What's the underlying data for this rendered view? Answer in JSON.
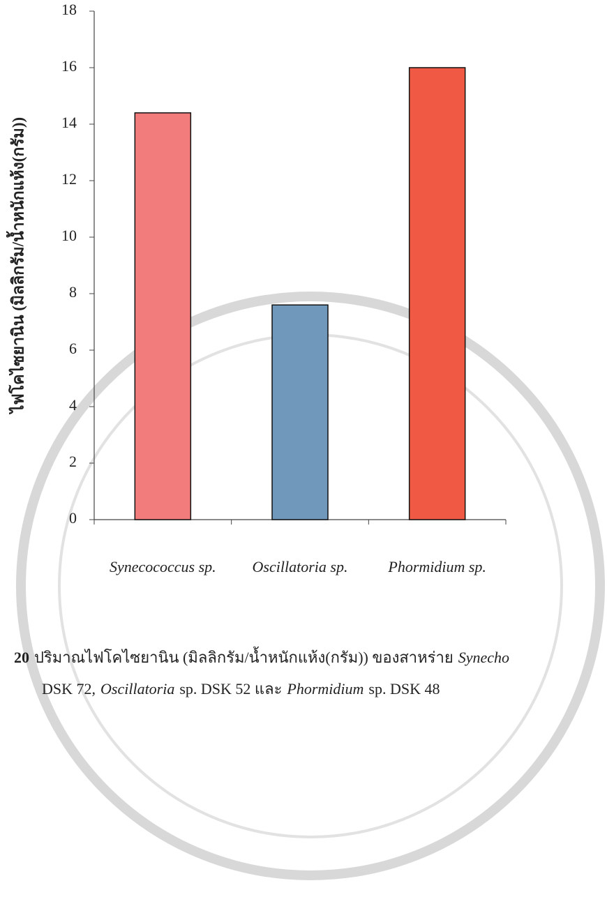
{
  "chart_data": {
    "type": "bar",
    "y_label": "ไฟโคไซยานิน (มิลลิกรัม/น้ำหนักแห้ง(กรัม))",
    "categories": [
      "Synecococcus sp.",
      "Oscillatoria sp.",
      "Phormidium sp."
    ],
    "values": [
      14.4,
      7.6,
      16.0
    ],
    "colors": [
      "#f27b7b",
      "#6f98bb",
      "#f05a44"
    ],
    "ylim": [
      0,
      18
    ],
    "yticks": [
      0,
      2,
      4,
      6,
      8,
      10,
      12,
      14,
      16,
      18
    ],
    "grid": false
  },
  "caption": {
    "lines": [
      [
        {
          "text": "20",
          "bold": true,
          "italic": false
        },
        {
          "text": "ปริมาณไฟโคไซยานิน (มิลลิกรัม/น้ำหนักแห้ง(กรัม)) ของสาหร่าย",
          "bold": false,
          "italic": false
        },
        {
          "text": "Synecho",
          "bold": false,
          "italic": true
        }
      ],
      [
        {
          "text": "DSK 72,",
          "bold": false,
          "italic": false
        },
        {
          "text": "Oscillatoria",
          "bold": false,
          "italic": true
        },
        {
          "text": "sp. DSK 52 และ",
          "bold": false,
          "italic": false
        },
        {
          "text": "Phormidium",
          "bold": false,
          "italic": true
        },
        {
          "text": "sp. DSK 48",
          "bold": false,
          "italic": false
        }
      ]
    ]
  }
}
